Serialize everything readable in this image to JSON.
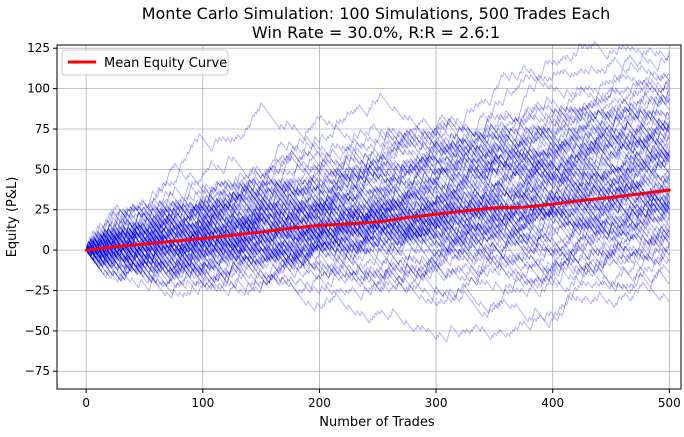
{
  "chart_data": {
    "type": "line",
    "title": "Monte Carlo Simulation: 100 Simulations, 500 Trades Each",
    "subtitle": "Win Rate = 30.0%, R:R = 2.6:1",
    "xlabel": "Number of Trades",
    "ylabel": "Equity (P&L)",
    "xlim": [
      -25,
      510
    ],
    "ylim": [
      -86,
      127
    ],
    "x_ticks": [
      0,
      100,
      200,
      300,
      400,
      500
    ],
    "y_ticks": [
      -75,
      -50,
      -25,
      0,
      25,
      50,
      75,
      100,
      125
    ],
    "grid": true,
    "legend": {
      "position": "top-left",
      "entries": [
        "Mean Equity Curve"
      ]
    },
    "simulations": {
      "count": 100,
      "trades_per_simulation": 500,
      "win_rate": 0.3,
      "reward_risk": 2.6,
      "color": "#0000ff",
      "opacity": 0.3
    },
    "series": [
      {
        "name": "Mean Equity Curve",
        "color": "#ff0000",
        "x": [
          0,
          25,
          50,
          75,
          100,
          125,
          150,
          175,
          200,
          225,
          250,
          275,
          300,
          325,
          350,
          375,
          400,
          425,
          450,
          475,
          500
        ],
        "values": [
          0,
          2.2,
          3.8,
          5.6,
          7.2,
          9.2,
          11.2,
          13.5,
          15.3,
          16.2,
          17.4,
          20.1,
          22.3,
          24.3,
          26.2,
          26.5,
          28.4,
          30.8,
          32.6,
          34.8,
          37.2
        ]
      }
    ]
  }
}
